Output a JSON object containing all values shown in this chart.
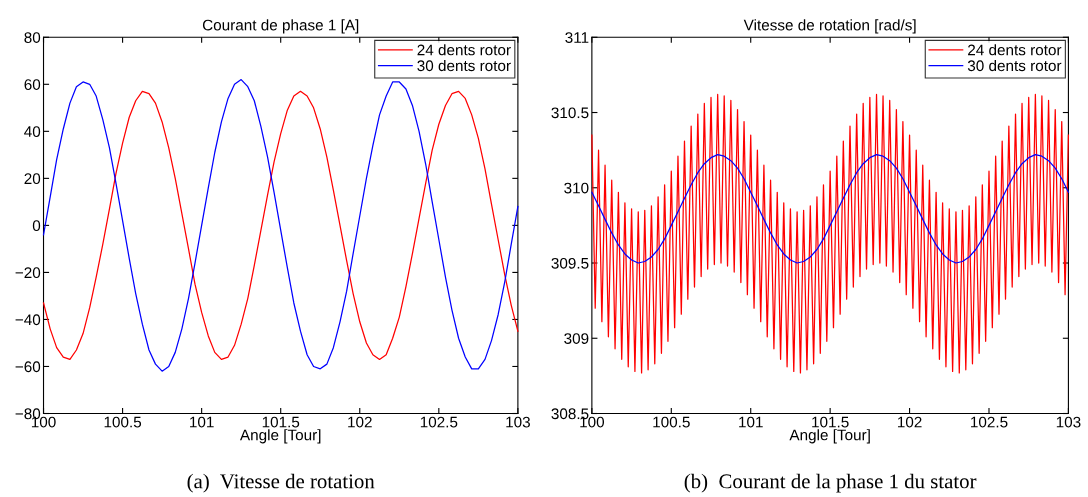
{
  "chart_data": [
    {
      "type": "line",
      "title": "Courant de phase 1 [A]",
      "xlabel": "Angle [Tour]",
      "annotations": [
        "(a)  Vitesse de rotation"
      ],
      "xlim": [
        100,
        103
      ],
      "xticks": [
        100,
        100.5,
        101,
        101.5,
        102,
        102.5,
        103
      ],
      "ylim": [
        -80,
        80
      ],
      "yticks": [
        {
          "value": -80,
          "label": "−80"
        },
        {
          "value": -60,
          "label": "−60"
        },
        {
          "value": -40,
          "label": "−40"
        },
        {
          "value": -20,
          "label": "−20"
        },
        0,
        20,
        40,
        60,
        80
      ],
      "grid": false,
      "legend": "top right",
      "line_style": "solid",
      "marker": "none",
      "x": [
        100,
        100.042,
        100.083,
        100.125,
        100.167,
        100.208,
        100.25,
        100.292,
        100.333,
        100.375,
        100.417,
        100.458,
        100.5,
        100.542,
        100.583,
        100.625,
        100.667,
        100.708,
        100.75,
        100.792,
        100.833,
        100.875,
        100.917,
        100.958,
        101,
        101.042,
        101.083,
        101.125,
        101.167,
        101.208,
        101.25,
        101.292,
        101.333,
        101.375,
        101.417,
        101.458,
        101.5,
        101.542,
        101.583,
        101.625,
        101.667,
        101.708,
        101.75,
        101.792,
        101.833,
        101.875,
        101.917,
        101.958,
        102,
        102.042,
        102.083,
        102.125,
        102.167,
        102.208,
        102.25,
        102.292,
        102.333,
        102.375,
        102.417,
        102.458,
        102.5,
        102.542,
        102.583,
        102.625,
        102.667,
        102.708,
        102.75,
        102.792,
        102.833,
        102.875,
        102.917,
        102.958,
        103
      ],
      "series": [
        {
          "name": "24 dents rotor",
          "color": "#ff0000",
          "values": [
            -33,
            -44,
            -52,
            -56,
            -57,
            -53,
            -46,
            -35,
            -22,
            -8,
            7,
            22,
            35,
            46,
            53,
            57,
            56,
            52,
            44,
            33,
            20,
            5,
            -10,
            -25,
            -37,
            -47,
            -54,
            -57,
            -56,
            -51,
            -42,
            -31,
            -17,
            -2,
            13,
            27,
            39,
            49,
            55,
            57,
            55,
            50,
            41,
            29,
            15,
            0,
            -15,
            -29,
            -41,
            -50,
            -55,
            -57,
            -55,
            -48,
            -39,
            -26,
            -12,
            3,
            18,
            32,
            43,
            51,
            56,
            57,
            54,
            47,
            37,
            24,
            9,
            -6,
            -21,
            -34,
            -45
          ]
        },
        {
          "name": "30 dents rotor",
          "color": "#0000ff",
          "values": [
            -4,
            12,
            28,
            41,
            52,
            59,
            61,
            60,
            55,
            45,
            33,
            18,
            2,
            -14,
            -29,
            -42,
            -53,
            -59,
            -62,
            -60,
            -54,
            -44,
            -31,
            -16,
            0,
            16,
            31,
            44,
            54,
            60,
            62,
            59,
            53,
            42,
            29,
            14,
            -2,
            -18,
            -33,
            -45,
            -55,
            -60,
            -61,
            -59,
            -52,
            -41,
            -28,
            -12,
            4,
            20,
            34,
            47,
            55,
            61,
            61,
            58,
            51,
            40,
            26,
            10,
            -6,
            -22,
            -36,
            -48,
            -56,
            -61,
            -61,
            -57,
            -49,
            -38,
            -24,
            -8,
            8
          ]
        }
      ]
    },
    {
      "type": "line",
      "title": "Vitesse de rotation [rad/s]",
      "xlabel": "Angle [Tour]",
      "annotations": [
        "(b)  Courant de la phase 1 du stator"
      ],
      "xlim": [
        100,
        103
      ],
      "xticks": [
        100,
        100.5,
        101,
        101.5,
        102,
        102.5,
        103
      ],
      "ylim": [
        308.5,
        311
      ],
      "yticks": [
        308.5,
        309,
        309.5,
        310,
        310.5,
        311
      ],
      "grid": false,
      "legend": "top right",
      "line_style": "solid",
      "marker": "none",
      "series": [
        {
          "name": "24 dents rotor",
          "color": "#ff0000",
          "x": [
            100,
            100.021,
            100.042,
            100.063,
            100.083,
            100.104,
            100.125,
            100.146,
            100.167,
            100.188,
            100.208,
            100.229,
            100.25,
            100.271,
            100.292,
            100.313,
            100.333,
            100.354,
            100.375,
            100.396,
            100.417,
            100.438,
            100.458,
            100.479,
            100.5,
            100.521,
            100.542,
            100.563,
            100.583,
            100.604,
            100.625,
            100.646,
            100.667,
            100.688,
            100.708,
            100.729,
            100.75,
            100.771,
            100.792,
            100.813,
            100.833,
            100.854,
            100.875,
            100.896,
            100.917,
            100.938,
            100.958,
            100.979,
            101,
            101.021,
            101.042,
            101.063,
            101.083,
            101.104,
            101.125,
            101.146,
            101.167,
            101.188,
            101.208,
            101.229,
            101.25,
            101.271,
            101.292,
            101.313,
            101.333,
            101.354,
            101.375,
            101.396,
            101.417,
            101.438,
            101.458,
            101.479,
            101.5,
            101.521,
            101.542,
            101.563,
            101.583,
            101.604,
            101.625,
            101.646,
            101.667,
            101.688,
            101.708,
            101.729,
            101.75,
            101.771,
            101.792,
            101.813,
            101.833,
            101.854,
            101.875,
            101.896,
            101.917,
            101.938,
            101.958,
            101.979,
            102,
            102.021,
            102.042,
            102.063,
            102.083,
            102.104,
            102.125,
            102.146,
            102.167,
            102.188,
            102.208,
            102.229,
            102.25,
            102.271,
            102.292,
            102.313,
            102.333,
            102.354,
            102.375,
            102.396,
            102.417,
            102.438,
            102.458,
            102.479,
            102.5,
            102.521,
            102.542,
            102.563,
            102.583,
            102.604,
            102.625,
            102.646,
            102.667,
            102.688,
            102.708,
            102.729,
            102.75,
            102.771,
            102.792,
            102.813,
            102.833,
            102.854,
            102.875,
            102.896,
            102.917,
            102.938,
            102.958,
            102.979,
            103
          ],
          "values": [
            310.35,
            309.2,
            310.25,
            309.11,
            310.15,
            309.01,
            310.05,
            308.93,
            309.97,
            308.86,
            309.9,
            308.81,
            309.86,
            308.78,
            309.84,
            308.77,
            309.85,
            308.79,
            309.88,
            308.83,
            309.94,
            308.9,
            310.02,
            308.98,
            310.11,
            309.07,
            310.21,
            309.16,
            310.31,
            309.26,
            310.41,
            309.34,
            310.49,
            309.41,
            310.56,
            309.46,
            310.6,
            309.49,
            310.62,
            309.5,
            310.61,
            309.48,
            310.58,
            309.44,
            310.52,
            309.37,
            310.44,
            309.29,
            310.35,
            309.2,
            310.25,
            309.11,
            310.15,
            309.01,
            310.05,
            308.93,
            309.97,
            308.86,
            309.9,
            308.81,
            309.86,
            308.78,
            309.84,
            308.77,
            309.85,
            308.79,
            309.88,
            308.83,
            309.94,
            308.9,
            310.02,
            308.98,
            310.11,
            309.07,
            310.21,
            309.16,
            310.31,
            309.26,
            310.41,
            309.34,
            310.49,
            309.41,
            310.56,
            309.46,
            310.6,
            309.49,
            310.62,
            309.5,
            310.61,
            309.48,
            310.58,
            309.44,
            310.52,
            309.37,
            310.44,
            309.29,
            310.35,
            309.2,
            310.25,
            309.11,
            310.15,
            309.01,
            310.05,
            308.93,
            309.97,
            308.86,
            309.9,
            308.81,
            309.86,
            308.78,
            309.84,
            308.77,
            309.85,
            308.79,
            309.88,
            308.83,
            309.94,
            308.9,
            310.02,
            308.98,
            310.11,
            309.07,
            310.21,
            309.16,
            310.31,
            309.26,
            310.41,
            309.34,
            310.49,
            309.41,
            310.56,
            309.46,
            310.6,
            309.49,
            310.62,
            309.5,
            310.61,
            309.48,
            310.58,
            309.44,
            310.52,
            309.37,
            310.44,
            309.29,
            310.35
          ]
        },
        {
          "name": "30 dents rotor",
          "color": "#0000ff",
          "x": [
            100,
            100.042,
            100.083,
            100.125,
            100.167,
            100.208,
            100.25,
            100.292,
            100.333,
            100.375,
            100.417,
            100.458,
            100.5,
            100.542,
            100.583,
            100.625,
            100.667,
            100.708,
            100.75,
            100.792,
            100.833,
            100.875,
            100.917,
            100.958,
            101,
            101.042,
            101.083,
            101.125,
            101.167,
            101.208,
            101.25,
            101.292,
            101.333,
            101.375,
            101.417,
            101.458,
            101.5,
            101.542,
            101.583,
            101.625,
            101.667,
            101.708,
            101.75,
            101.792,
            101.833,
            101.875,
            101.917,
            101.958,
            102,
            102.042,
            102.083,
            102.125,
            102.167,
            102.208,
            102.25,
            102.292,
            102.333,
            102.375,
            102.417,
            102.458,
            102.5,
            102.542,
            102.583,
            102.625,
            102.667,
            102.708,
            102.75,
            102.792,
            102.833,
            102.875,
            102.917,
            102.958,
            103
          ],
          "values": [
            309.97,
            309.88,
            309.79,
            309.7,
            309.62,
            309.56,
            309.52,
            309.5,
            309.51,
            309.54,
            309.59,
            309.66,
            309.75,
            309.84,
            309.93,
            310.02,
            310.1,
            310.16,
            310.2,
            310.22,
            310.21,
            310.18,
            310.13,
            310.06,
            309.97,
            309.88,
            309.79,
            309.7,
            309.62,
            309.56,
            309.52,
            309.5,
            309.51,
            309.54,
            309.59,
            309.66,
            309.75,
            309.84,
            309.93,
            310.02,
            310.1,
            310.16,
            310.2,
            310.22,
            310.21,
            310.18,
            310.13,
            310.06,
            309.97,
            309.88,
            309.79,
            309.7,
            309.62,
            309.56,
            309.52,
            309.5,
            309.51,
            309.54,
            309.59,
            309.66,
            309.75,
            309.84,
            309.93,
            310.02,
            310.1,
            310.16,
            310.2,
            310.22,
            310.21,
            310.18,
            310.13,
            310.06,
            309.97
          ]
        }
      ]
    }
  ]
}
